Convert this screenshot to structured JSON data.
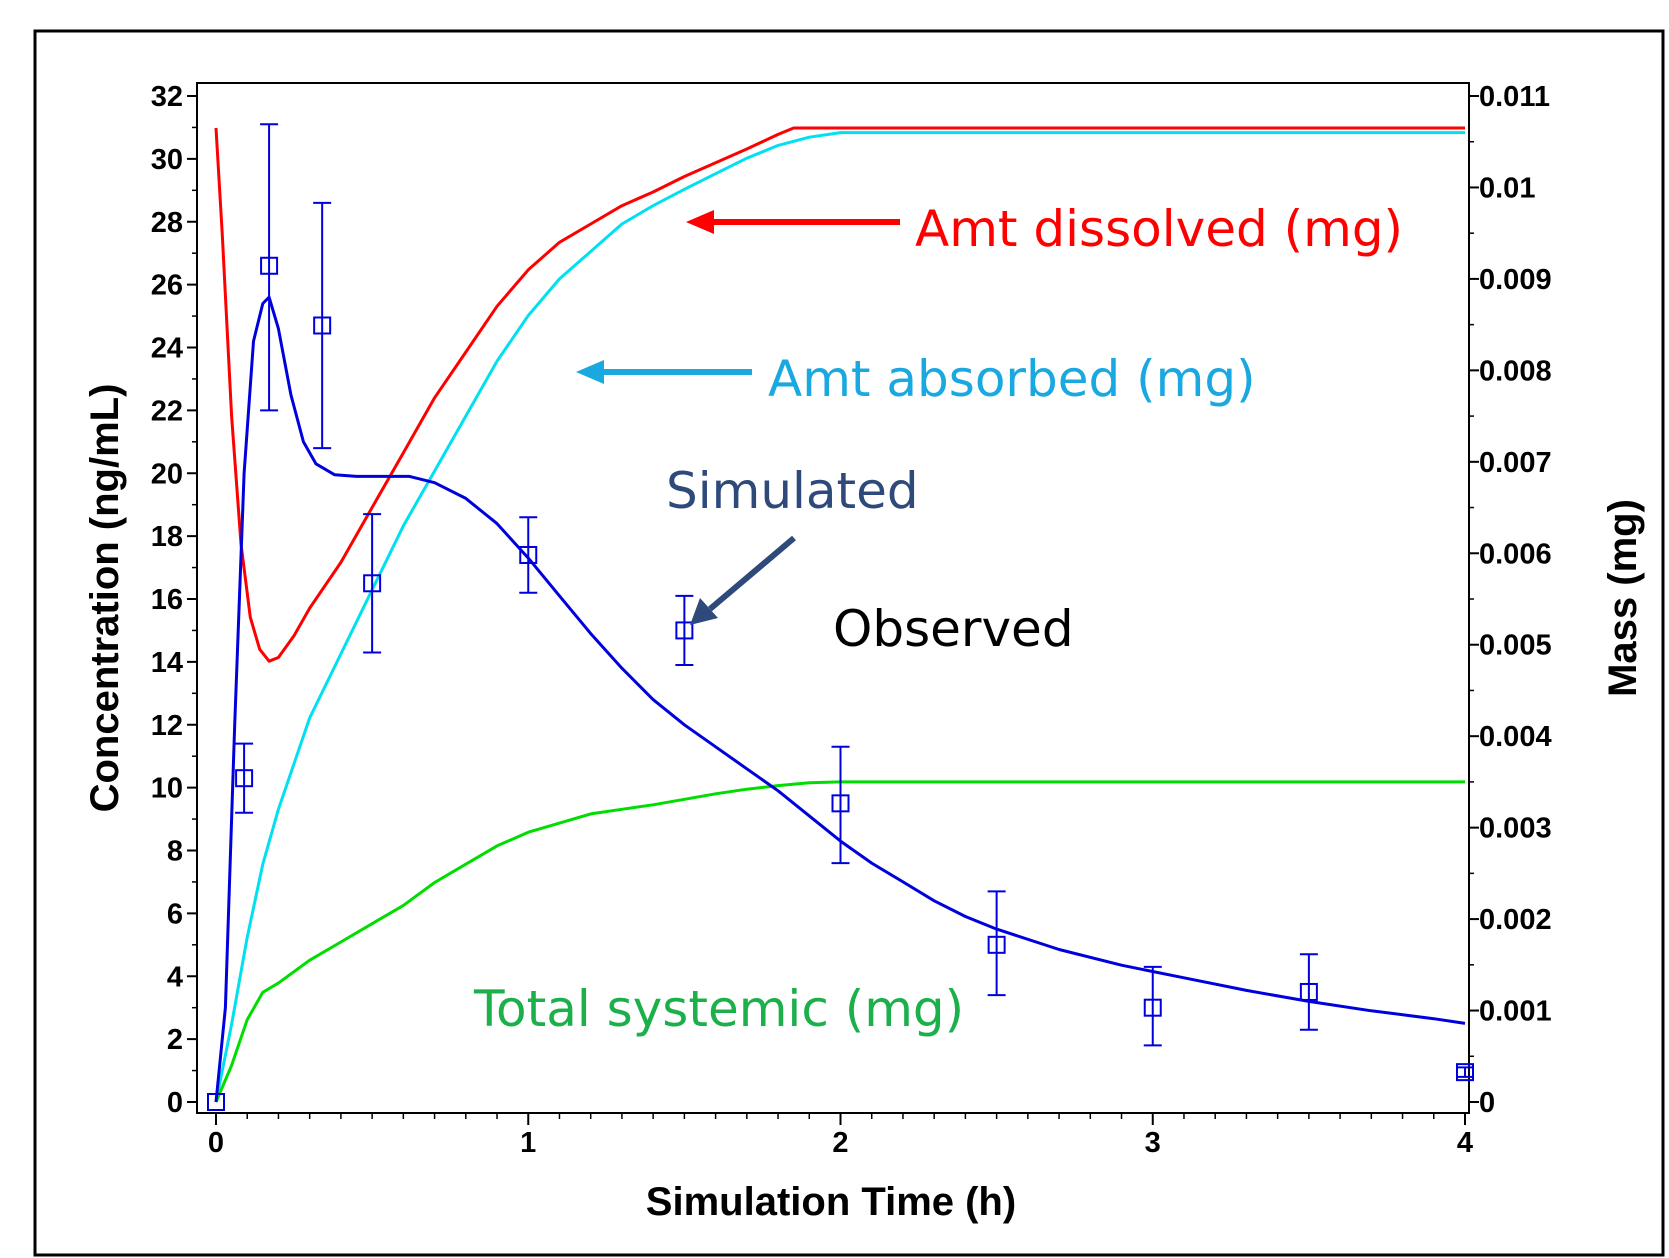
{
  "chart_data": {
    "type": "line",
    "xlabel": "Simulation Time (h)",
    "ylabel": "Concentration (ng/mL)",
    "y2label": "Mass (mg)",
    "xlim": [
      0,
      4
    ],
    "ylim": [
      0,
      32
    ],
    "y2lim": [
      0,
      0.011
    ],
    "x_ticks": [
      "0",
      "1",
      "2",
      "3",
      "4"
    ],
    "y_ticks": [
      "0",
      "2",
      "4",
      "6",
      "8",
      "10",
      "12",
      "14",
      "16",
      "18",
      "20",
      "22",
      "24",
      "26",
      "28",
      "30",
      "32"
    ],
    "y2_ticks": [
      "0",
      "0.001",
      "0.002",
      "0.003",
      "0.004",
      "0.005",
      "0.006",
      "0.007",
      "0.008",
      "0.009",
      "0.01",
      "0.011"
    ],
    "grid": false,
    "series": [
      {
        "axis": "left",
        "color": "#0000dd",
        "x": [
          0,
          0.03,
          0.06,
          0.09,
          0.12,
          0.15,
          0.17,
          0.2,
          0.24,
          0.28,
          0.32,
          0.38,
          0.45,
          0.55,
          0.62,
          0.7,
          0.8,
          0.9,
          1.0,
          1.1,
          1.2,
          1.3,
          1.4,
          1.5,
          1.6,
          1.7,
          1.8,
          1.9,
          2.0,
          2.1,
          2.2,
          2.3,
          2.4,
          2.5,
          2.7,
          2.9,
          3.1,
          3.3,
          3.5,
          3.7,
          3.9,
          4.0
        ],
        "y": [
          0,
          3,
          12,
          20,
          24.2,
          25.4,
          25.6,
          24.6,
          22.5,
          21.0,
          20.3,
          19.95,
          19.9,
          19.9,
          19.9,
          19.7,
          19.2,
          18.4,
          17.3,
          16.1,
          14.9,
          13.8,
          12.8,
          12.0,
          11.3,
          10.6,
          9.9,
          9.1,
          8.3,
          7.6,
          7.0,
          6.4,
          5.9,
          5.5,
          4.85,
          4.35,
          3.95,
          3.55,
          3.2,
          2.9,
          2.65,
          2.5
        ]
      },
      {
        "axis": "right",
        "color": "#ff0000",
        "x": [
          0,
          0.02,
          0.05,
          0.08,
          0.11,
          0.14,
          0.17,
          0.2,
          0.25,
          0.3,
          0.4,
          0.5,
          0.6,
          0.7,
          0.8,
          0.9,
          1.0,
          1.1,
          1.2,
          1.3,
          1.4,
          1.5,
          1.6,
          1.7,
          1.8,
          1.85,
          1.9,
          2.0,
          4.0
        ],
        "y": [
          0.01065,
          0.0095,
          0.0075,
          0.0061,
          0.0053,
          0.00495,
          0.00482,
          0.00486,
          0.0051,
          0.0054,
          0.0059,
          0.0065,
          0.0071,
          0.0077,
          0.0082,
          0.0087,
          0.0091,
          0.0094,
          0.0096,
          0.0098,
          0.00995,
          0.01012,
          0.01027,
          0.01042,
          0.01058,
          0.01065,
          0.01065,
          0.01065,
          0.01065
        ]
      },
      {
        "axis": "right",
        "color": "#00e0f0",
        "x": [
          0,
          0.05,
          0.1,
          0.15,
          0.2,
          0.3,
          0.4,
          0.5,
          0.6,
          0.7,
          0.8,
          0.9,
          1.0,
          1.1,
          1.2,
          1.3,
          1.4,
          1.5,
          1.6,
          1.7,
          1.8,
          1.9,
          2.0,
          2.2,
          4.0
        ],
        "y": [
          0,
          0.00085,
          0.0018,
          0.0026,
          0.0032,
          0.0042,
          0.0049,
          0.0056,
          0.0063,
          0.0069,
          0.0075,
          0.0081,
          0.0086,
          0.009,
          0.0093,
          0.0096,
          0.0098,
          0.00998,
          0.01015,
          0.01032,
          0.01046,
          0.01055,
          0.0106,
          0.0106,
          0.0106
        ]
      },
      {
        "axis": "right",
        "color": "#00dd00",
        "x": [
          0,
          0.05,
          0.1,
          0.15,
          0.2,
          0.3,
          0.4,
          0.5,
          0.6,
          0.7,
          0.8,
          0.9,
          1.0,
          1.1,
          1.2,
          1.3,
          1.4,
          1.5,
          1.6,
          1.7,
          1.8,
          1.9,
          2.0,
          4.0
        ],
        "y": [
          0,
          0.0004,
          0.0009,
          0.0012,
          0.0013,
          0.00155,
          0.00175,
          0.00195,
          0.00215,
          0.0024,
          0.0026,
          0.0028,
          0.00295,
          0.00305,
          0.00315,
          0.0032,
          0.00325,
          0.00331,
          0.00337,
          0.00342,
          0.00346,
          0.00349,
          0.0035,
          0.0035
        ]
      }
    ],
    "observed": {
      "color": "#0000dd",
      "points": [
        {
          "x": 0,
          "y": 0,
          "err_low": 0,
          "err_high": 0
        },
        {
          "x": 0.09,
          "y": 10.3,
          "err_low": 9.2,
          "err_high": 11.4
        },
        {
          "x": 0.17,
          "y": 26.6,
          "err_low": 22.0,
          "err_high": 31.1
        },
        {
          "x": 0.34,
          "y": 24.7,
          "err_low": 20.8,
          "err_high": 28.6
        },
        {
          "x": 0.5,
          "y": 16.5,
          "err_low": 14.3,
          "err_high": 18.7
        },
        {
          "x": 1.0,
          "y": 17.4,
          "err_low": 16.2,
          "err_high": 18.6
        },
        {
          "x": 1.5,
          "y": 15.0,
          "err_low": 13.9,
          "err_high": 16.1
        },
        {
          "x": 2.0,
          "y": 9.5,
          "err_low": 7.6,
          "err_high": 11.3
        },
        {
          "x": 2.5,
          "y": 5.0,
          "err_low": 3.4,
          "err_high": 6.7
        },
        {
          "x": 3.0,
          "y": 3.0,
          "err_low": 1.8,
          "err_high": 4.3
        },
        {
          "x": 3.5,
          "y": 3.5,
          "err_low": 2.3,
          "err_high": 4.7
        },
        {
          "x": 4.0,
          "y": 0.95,
          "err_low": 0.8,
          "err_high": 1.1
        }
      ]
    },
    "annotations": [
      {
        "text": "Amt dissolved (mg)",
        "color": "#ff0000"
      },
      {
        "text": "Amt absorbed (mg)",
        "color": "#1aa8e0"
      },
      {
        "text": "Simulated",
        "color": "#2e4a7a"
      },
      {
        "text": "Observed",
        "color": "#000000"
      },
      {
        "text": "Total systemic (mg)",
        "color": "#1cb04a"
      }
    ],
    "arrow_colors": {
      "dissolved": "#ff0000",
      "absorbed": "#1aa8e0",
      "simulated": "#2e4a7a"
    }
  }
}
